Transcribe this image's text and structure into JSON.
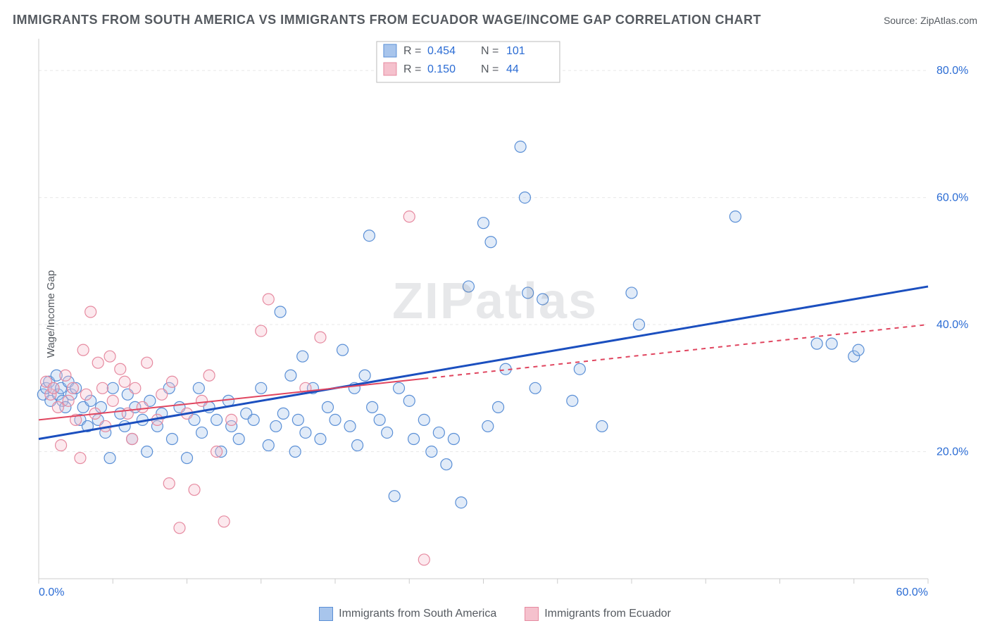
{
  "title": "IMMIGRANTS FROM SOUTH AMERICA VS IMMIGRANTS FROM ECUADOR WAGE/INCOME GAP CORRELATION CHART",
  "source_prefix": "Source: ",
  "source_name": "ZipAtlas.com",
  "ylabel": "Wage/Income Gap",
  "watermark": "ZIPatlas",
  "chart": {
    "type": "scatter",
    "background_color": "#ffffff",
    "grid_color": "#e8e8e8",
    "border_color": "#cccccc",
    "xlim": [
      0,
      60
    ],
    "ylim": [
      0,
      85
    ],
    "x_ticks_minor": [
      0,
      5,
      10,
      15,
      20,
      25,
      30,
      35,
      40,
      45,
      50,
      55,
      60
    ],
    "x_ticks_labeled": [
      0,
      60
    ],
    "x_tick_fmt": "%",
    "y_ticks": [
      20,
      40,
      60,
      80
    ],
    "y_tick_fmt": "%",
    "axis_label_color": "#2b6cd4",
    "axis_label_fontsize": 16,
    "marker_radius": 8,
    "marker_fill_opacity": 0.35,
    "marker_stroke_width": 1.2,
    "series": [
      {
        "key": "south_america",
        "label": "Immigrants from South America",
        "color_fill": "#a8c5ec",
        "color_stroke": "#5a8fd6",
        "stats": {
          "R": "0.454",
          "N": "101"
        },
        "trend": {
          "x1": 0,
          "y1": 22,
          "x2": 60,
          "y2": 46,
          "stroke": "#1b4fbf",
          "stroke_width": 3,
          "dash": "none",
          "solid_until_x": 60
        },
        "points": [
          [
            0.3,
            29
          ],
          [
            0.5,
            30
          ],
          [
            0.7,
            31
          ],
          [
            0.8,
            28
          ],
          [
            1.0,
            30
          ],
          [
            1.2,
            32
          ],
          [
            1.3,
            29
          ],
          [
            1.5,
            30
          ],
          [
            1.6,
            28
          ],
          [
            1.8,
            27
          ],
          [
            2.0,
            31
          ],
          [
            2.2,
            29
          ],
          [
            2.5,
            30
          ],
          [
            2.8,
            25
          ],
          [
            3.0,
            27
          ],
          [
            3.3,
            24
          ],
          [
            3.5,
            28
          ],
          [
            4.0,
            25
          ],
          [
            4.2,
            27
          ],
          [
            4.5,
            23
          ],
          [
            4.8,
            19
          ],
          [
            5.0,
            30
          ],
          [
            5.5,
            26
          ],
          [
            5.8,
            24
          ],
          [
            6.0,
            29
          ],
          [
            6.3,
            22
          ],
          [
            6.5,
            27
          ],
          [
            7.0,
            25
          ],
          [
            7.3,
            20
          ],
          [
            7.5,
            28
          ],
          [
            8.0,
            24
          ],
          [
            8.3,
            26
          ],
          [
            8.8,
            30
          ],
          [
            9.0,
            22
          ],
          [
            9.5,
            27
          ],
          [
            10.0,
            19
          ],
          [
            10.5,
            25
          ],
          [
            10.8,
            30
          ],
          [
            11.0,
            23
          ],
          [
            11.5,
            27
          ],
          [
            12.0,
            25
          ],
          [
            12.3,
            20
          ],
          [
            12.8,
            28
          ],
          [
            13.0,
            24
          ],
          [
            13.5,
            22
          ],
          [
            14.0,
            26
          ],
          [
            14.5,
            25
          ],
          [
            15.0,
            30
          ],
          [
            15.5,
            21
          ],
          [
            16.0,
            24
          ],
          [
            16.3,
            42
          ],
          [
            16.5,
            26
          ],
          [
            17.0,
            32
          ],
          [
            17.3,
            20
          ],
          [
            17.5,
            25
          ],
          [
            17.8,
            35
          ],
          [
            18.0,
            23
          ],
          [
            18.5,
            30
          ],
          [
            19.0,
            22
          ],
          [
            19.5,
            27
          ],
          [
            20.0,
            25
          ],
          [
            20.5,
            36
          ],
          [
            21.0,
            24
          ],
          [
            21.3,
            30
          ],
          [
            21.5,
            21
          ],
          [
            22.0,
            32
          ],
          [
            22.3,
            54
          ],
          [
            22.5,
            27
          ],
          [
            23.0,
            25
          ],
          [
            23.5,
            23
          ],
          [
            24.0,
            13
          ],
          [
            24.3,
            30
          ],
          [
            25.0,
            28
          ],
          [
            25.3,
            22
          ],
          [
            26.0,
            25
          ],
          [
            26.5,
            20
          ],
          [
            27.0,
            23
          ],
          [
            27.5,
            18
          ],
          [
            28.0,
            22
          ],
          [
            28.5,
            12
          ],
          [
            29.0,
            46
          ],
          [
            30.0,
            56
          ],
          [
            30.3,
            24
          ],
          [
            30.5,
            53
          ],
          [
            31.0,
            27
          ],
          [
            31.5,
            33
          ],
          [
            32.5,
            68
          ],
          [
            32.8,
            60
          ],
          [
            33.0,
            45
          ],
          [
            33.5,
            30
          ],
          [
            34.0,
            44
          ],
          [
            36.0,
            28
          ],
          [
            36.5,
            33
          ],
          [
            38.0,
            24
          ],
          [
            40.0,
            45
          ],
          [
            40.5,
            40
          ],
          [
            47.0,
            57
          ],
          [
            52.5,
            37
          ],
          [
            53.5,
            37
          ],
          [
            55.0,
            35
          ],
          [
            55.3,
            36
          ]
        ]
      },
      {
        "key": "ecuador",
        "label": "Immigrants from Ecuador",
        "color_fill": "#f5c1cd",
        "color_stroke": "#e68aa0",
        "stats": {
          "R": "0.150",
          "N": "44"
        },
        "trend": {
          "x1": 0,
          "y1": 25,
          "x2": 60,
          "y2": 40,
          "stroke": "#e0455f",
          "stroke_width": 2,
          "dash": "6 6",
          "solid_until_x": 26
        },
        "points": [
          [
            0.5,
            31
          ],
          [
            0.8,
            29
          ],
          [
            1.0,
            30
          ],
          [
            1.3,
            27
          ],
          [
            1.5,
            21
          ],
          [
            1.8,
            32
          ],
          [
            2.0,
            28
          ],
          [
            2.3,
            30
          ],
          [
            2.5,
            25
          ],
          [
            2.8,
            19
          ],
          [
            3.0,
            36
          ],
          [
            3.2,
            29
          ],
          [
            3.5,
            42
          ],
          [
            3.8,
            26
          ],
          [
            4.0,
            34
          ],
          [
            4.3,
            30
          ],
          [
            4.5,
            24
          ],
          [
            4.8,
            35
          ],
          [
            5.0,
            28
          ],
          [
            5.5,
            33
          ],
          [
            5.8,
            31
          ],
          [
            6.0,
            26
          ],
          [
            6.3,
            22
          ],
          [
            6.5,
            30
          ],
          [
            7.0,
            27
          ],
          [
            7.3,
            34
          ],
          [
            8.0,
            25
          ],
          [
            8.3,
            29
          ],
          [
            8.8,
            15
          ],
          [
            9.0,
            31
          ],
          [
            9.5,
            8
          ],
          [
            10.0,
            26
          ],
          [
            10.5,
            14
          ],
          [
            11.0,
            28
          ],
          [
            11.5,
            32
          ],
          [
            12.0,
            20
          ],
          [
            12.5,
            9
          ],
          [
            13.0,
            25
          ],
          [
            15.0,
            39
          ],
          [
            15.5,
            44
          ],
          [
            18.0,
            30
          ],
          [
            19.0,
            38
          ],
          [
            25.0,
            57
          ],
          [
            26.0,
            3
          ]
        ]
      }
    ]
  },
  "stats_box": {
    "R_label": "R =",
    "N_label": "N ="
  }
}
